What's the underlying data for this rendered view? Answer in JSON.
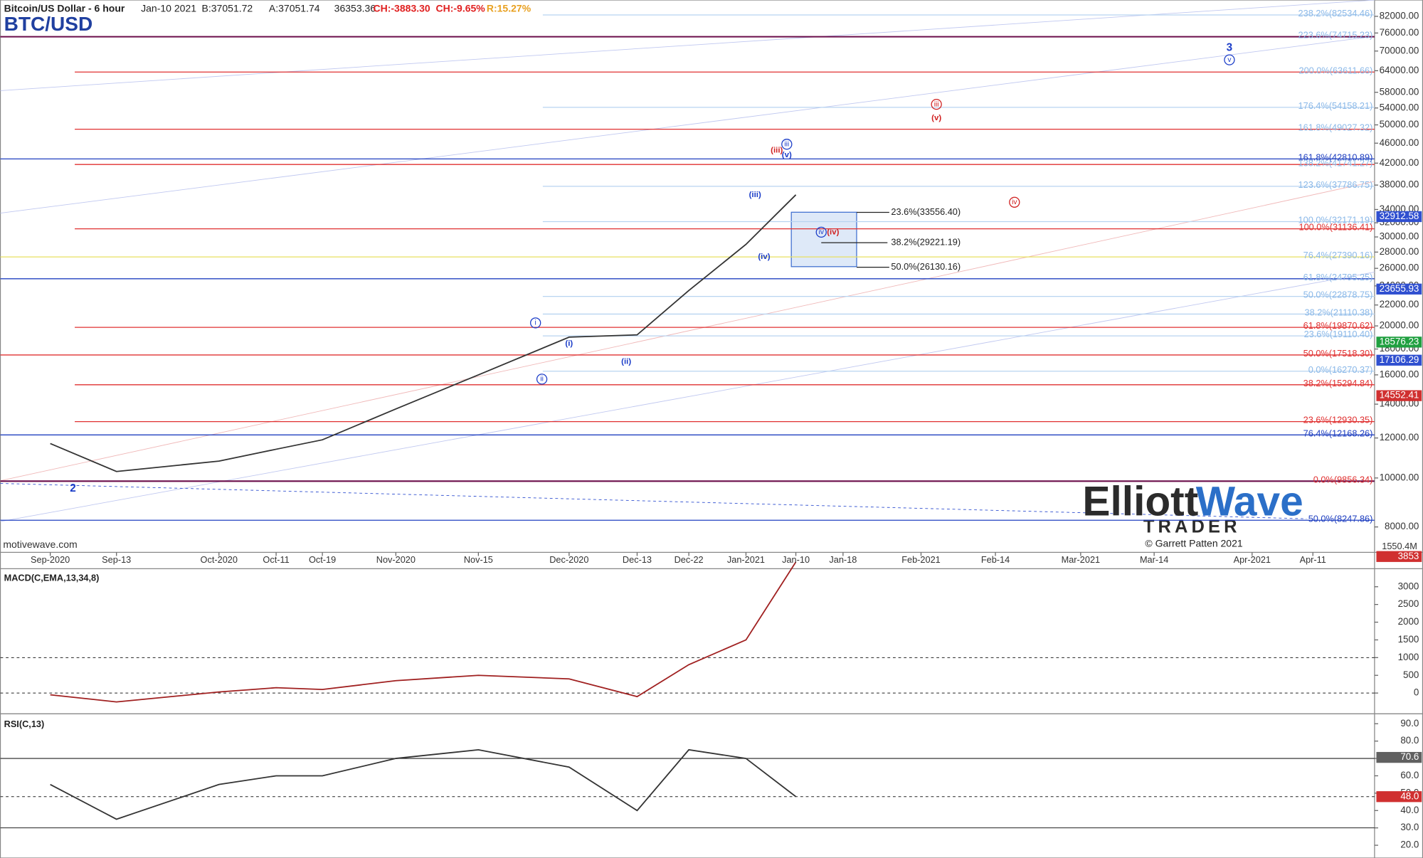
{
  "header": {
    "symbol": "Bitcoin/US Dollar - 6 hour",
    "date": "Jan-10 2021",
    "bid": "B:37051.72",
    "ask": "A:37051.74",
    "last": "36353.36",
    "change": "CH:-3883.30",
    "change_pct": "CH:-9.65%",
    "range": "R:15.27%",
    "title": "BTC/USD"
  },
  "watermark": "motivewave.com",
  "copyright": "© Garrett Patten 2021",
  "logo": {
    "part1": "Elliott",
    "part2": "Wave",
    "sub": "TRADER"
  },
  "volume_label": "1550.4M",
  "wave_labels": [
    {
      "text": "2",
      "color": "#1a3cc8",
      "circle": false
    },
    {
      "text": "3",
      "color": "#1a3cc8",
      "circle": false
    },
    {
      "text": "v",
      "color": "#1a3cc8",
      "circle": true
    },
    {
      "text": "iii",
      "color": "#d02020",
      "circle": true
    },
    {
      "text": "(v)",
      "color": "#d02020",
      "circle": false
    },
    {
      "text": "(iii)",
      "color": "#d02020",
      "circle": false
    },
    {
      "text": "iii",
      "color": "#1a3cc8",
      "circle": true
    },
    {
      "text": "(v)",
      "color": "#1a3cc8",
      "circle": false
    },
    {
      "text": "(iii)",
      "color": "#1a3cc8",
      "circle": false
    },
    {
      "text": "(iv)",
      "color": "#1a3cc8",
      "circle": false
    },
    {
      "text": "iv",
      "color": "#d02020",
      "circle": true
    },
    {
      "text": "iv",
      "color": "#1a3cc8",
      "circle": true
    },
    {
      "text": "(iv)",
      "color": "#d02020",
      "circle": false
    },
    {
      "text": "i",
      "color": "#1a3cc8",
      "circle": true
    },
    {
      "text": "(i)",
      "color": "#1a3cc8",
      "circle": false
    },
    {
      "text": "(ii)",
      "color": "#1a3cc8",
      "circle": false
    },
    {
      "text": "ii",
      "color": "#1a3cc8",
      "circle": true
    }
  ],
  "chart_data": [
    {
      "type": "line",
      "log": true,
      "categories": [
        "Sep-2020",
        "Sep-13",
        "Oct-2020",
        "Oct-11",
        "Oct-19",
        "Nov-2020",
        "Nov-15",
        "Dec-2020",
        "Dec-13",
        "Dec-22",
        "Jan-2021",
        "Jan-10",
        "Jan-18",
        "Feb-2021",
        "Feb-14",
        "Mar-2021",
        "Mar-14",
        "Apr-2021",
        "Apr-11"
      ],
      "values": [
        11700,
        10300,
        10800,
        11400,
        11900,
        13700,
        16000,
        19000,
        19200,
        23500,
        29000,
        36353.36,
        null,
        null,
        null,
        null,
        null,
        null,
        null
      ],
      "color": "#333333",
      "ylim": [
        7125,
        87250
      ],
      "yticks": [
        {
          "value": 8000,
          "label": "8000.00"
        },
        {
          "value": 10000,
          "label": "10000.00"
        },
        {
          "value": 12000,
          "label": "12000.00"
        },
        {
          "value": 14000,
          "label": "14000.00"
        },
        {
          "value": 16000,
          "label": "16000.00"
        },
        {
          "value": 18000,
          "label": "18000.00"
        },
        {
          "value": 20000,
          "label": "20000.00"
        },
        {
          "value": 22000,
          "label": "22000.00"
        },
        {
          "value": 24000,
          "label": "24000.00"
        },
        {
          "value": 26000,
          "label": "26000.00"
        },
        {
          "value": 28000,
          "label": "28000.00"
        },
        {
          "value": 30000,
          "label": "30000.00"
        },
        {
          "value": 32000,
          "label": "32000.00"
        },
        {
          "value": 34000,
          "label": "34000.00"
        },
        {
          "value": 38000,
          "label": "38000.00"
        },
        {
          "value": 42000,
          "label": "42000.00"
        },
        {
          "value": 46000,
          "label": "46000.00"
        },
        {
          "value": 50000,
          "label": "50000.00"
        },
        {
          "value": 54000,
          "label": "54000.00"
        },
        {
          "value": 58000,
          "label": "58000.00"
        },
        {
          "value": 64000,
          "label": "64000.00"
        },
        {
          "value": 70000,
          "label": "70000.00"
        },
        {
          "value": 76000,
          "label": "76000.00"
        },
        {
          "value": 82000,
          "label": "82000.00"
        }
      ],
      "fib_levels": [
        {
          "label": "238.2%(82534.46)",
          "value": 82534.46,
          "color": "#8ab8e8",
          "line_color": "#b8d4f0"
        },
        {
          "label": "223.6%(74715.23)",
          "value": 74715.23,
          "color": "#8ab8e8",
          "line_color": "#6a0d4a"
        },
        {
          "label": "200.0%(63611.66)",
          "value": 63611.66,
          "color": "#8ab8e8",
          "line_color": "#e03030"
        },
        {
          "label": "176.4%(54158.21)",
          "value": 54158.21,
          "color": "#8ab8e8",
          "line_color": "#b8d4f0"
        },
        {
          "label": "161.8%(49027.32)",
          "value": 49027.32,
          "color": "#8ab8e8",
          "line_color": "#e03030"
        },
        {
          "label": "161.8%(42810.89)",
          "value": 42810.89,
          "color": "#2040c0",
          "line_color": "#2040c0"
        },
        {
          "label": "138.2%(41741.27)",
          "value": 41741.27,
          "color": "#8ab8e8",
          "line_color": "#e03030"
        },
        {
          "label": "123.6%(37786.75)",
          "value": 37786.75,
          "color": "#8ab8e8",
          "line_color": "#b8d4f0"
        },
        {
          "label": "100.0%(32171.19)",
          "value": 32171.19,
          "color": "#8ab8e8",
          "line_color": "#b8d4f0"
        },
        {
          "label": "100.0%(31136.41)",
          "value": 31136.41,
          "color": "#e03030",
          "line_color": "#e03030"
        },
        {
          "label": "76.4%(27390.16)",
          "value": 27390.16,
          "color": "#8ab8e8",
          "line_color": "#e8e060"
        },
        {
          "label": "61.8%(24795.25)",
          "value": 24795.25,
          "color": "#8ab8e8",
          "line_color": "#2040c0"
        },
        {
          "label": "50.0%(22878.75)",
          "value": 22878.75,
          "color": "#8ab8e8",
          "line_color": "#b8d4f0"
        },
        {
          "label": "38.2%(21110.38)",
          "value": 21110.38,
          "color": "#8ab8e8",
          "line_color": "#b8d4f0"
        },
        {
          "label": "61.8%(19870.62)",
          "value": 19870.62,
          "color": "#e03030",
          "line_color": "#e03030"
        },
        {
          "label": "23.6%(19110.40)",
          "value": 19110.4,
          "color": "#8ab8e8",
          "line_color": "#b8d4f0"
        },
        {
          "label": "50.0%(17518.30)",
          "value": 17518.3,
          "color": "#e03030",
          "line_color": "#e03030"
        },
        {
          "label": "0.0%(16270.37)",
          "value": 16270.37,
          "color": "#8ab8e8",
          "line_color": "#b8d4f0"
        },
        {
          "label": "38.2%(15294.84)",
          "value": 15294.84,
          "color": "#e03030",
          "line_color": "#e03030"
        },
        {
          "label": "23.6%(12930.35)",
          "value": 12930.35,
          "color": "#e03030",
          "line_color": "#e03030"
        },
        {
          "label": "76.4%(12168.26)",
          "value": 12168.26,
          "color": "#2040c0",
          "line_color": "#2040c0"
        },
        {
          "label": "0.0%(9856.34)",
          "value": 9856.34,
          "color": "#e03030",
          "line_color": "#6a0d4a"
        },
        {
          "label": "50.0%(8247.86)",
          "value": 8247.86,
          "color": "#2040c0",
          "line_color": "#2040c0"
        }
      ],
      "box_levels": [
        {
          "label": "23.6%(33556.40)",
          "value": 33556.4
        },
        {
          "label": "38.2%(29221.19)",
          "value": 29221.19
        },
        {
          "label": "50.0%(26130.16)",
          "value": 26130.16
        }
      ],
      "tags": [
        {
          "value": 32912.58,
          "color": "#3050d0"
        },
        {
          "value": 23655.93,
          "color": "#3050d0"
        },
        {
          "value": 18576.23,
          "color": "#20a040"
        },
        {
          "value": 17106.29,
          "color": "#3050d0"
        },
        {
          "value": 14552.41,
          "color": "#d03030"
        }
      ]
    },
    {
      "type": "line",
      "title": "MACD(C,EMA,13,34,8)",
      "values": [
        -50,
        -250,
        30,
        150,
        100,
        350,
        500,
        400,
        -100,
        800,
        1500,
        3700,
        null,
        null,
        null,
        null,
        null,
        null,
        null
      ],
      "color": "#a02020",
      "ylim": [
        -560,
        3510
      ],
      "yticks": [
        0,
        500,
        1000,
        1500,
        2000,
        2500,
        3000
      ],
      "reference_lines": [
        {
          "value": 1000,
          "style": "dashed"
        },
        {
          "value": 0,
          "style": "dashed"
        }
      ],
      "tags": [
        {
          "value": 3853,
          "color": "#d03030"
        }
      ]
    },
    {
      "type": "line",
      "title": "RSI(C,13)",
      "values": [
        55,
        35,
        55,
        60,
        60,
        70,
        75,
        65,
        40,
        75,
        70,
        48,
        null,
        null,
        null,
        null,
        null,
        null,
        null
      ],
      "color": "#333333",
      "ylim": [
        13.7,
        95.2
      ],
      "yticks": [
        {
          "value": 20,
          "label": "20.0"
        },
        {
          "value": 30,
          "label": "30.0"
        },
        {
          "value": 40,
          "label": "40.0"
        },
        {
          "value": 50,
          "label": "50.0"
        },
        {
          "value": 60,
          "label": "60.0"
        },
        {
          "value": 70,
          "label": "70.0"
        },
        {
          "value": 80,
          "label": "80.0"
        },
        {
          "value": 90,
          "label": "90.0"
        }
      ],
      "reference_lines": [
        {
          "value": 70,
          "style": "solid"
        },
        {
          "value": 30,
          "style": "solid"
        },
        {
          "value": 48,
          "style": "dashed"
        }
      ],
      "tags": [
        {
          "value": 70.6,
          "color": "#606060"
        },
        {
          "value": 48,
          "label": "48.0",
          "color": "#d03030"
        }
      ]
    }
  ]
}
